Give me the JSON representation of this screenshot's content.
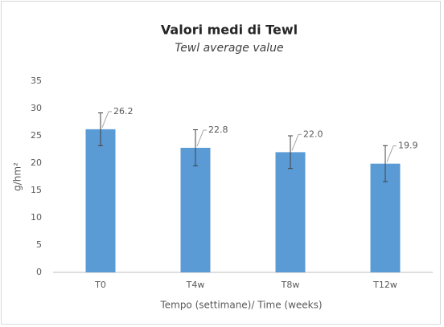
{
  "chart_data": {
    "type": "bar",
    "title": "Valori medi di Tewl",
    "subtitle": "Tewl average value",
    "x_label": "Tempo (settimane)/ Time (weeks)",
    "y_label": "g/hm²",
    "categories": [
      "T0",
      "T4w",
      "T8w",
      "T12w"
    ],
    "values": [
      26.2,
      22.8,
      22.0,
      19.9
    ],
    "value_labels": [
      "26.2",
      "22.8",
      "22.0",
      "19.9"
    ],
    "errors": [
      3.0,
      3.3,
      3.0,
      3.3
    ],
    "color": "#5b9bd5",
    "ylim": [
      0,
      35
    ],
    "yticks": [
      0,
      5,
      10,
      15,
      20,
      25,
      30,
      35
    ],
    "grid": false
  }
}
